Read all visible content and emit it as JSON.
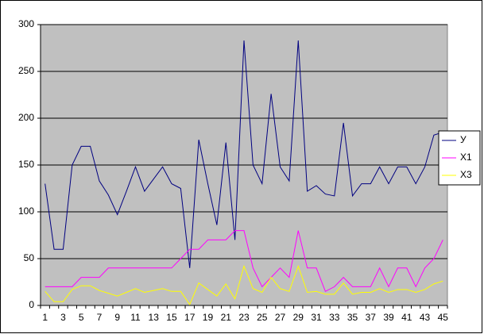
{
  "chart_data": {
    "type": "line",
    "categories": [
      1,
      null,
      3,
      null,
      5,
      null,
      7,
      null,
      9,
      null,
      11,
      null,
      13,
      null,
      15,
      null,
      17,
      null,
      19,
      null,
      21,
      null,
      23,
      null,
      25,
      null,
      27,
      null,
      29,
      null,
      31,
      null,
      33,
      null,
      35,
      null,
      37,
      null,
      39,
      null,
      41,
      null,
      43,
      null,
      45
    ],
    "series": [
      {
        "name": "У",
        "color": "#000080",
        "values": [
          130,
          60,
          60,
          150,
          170,
          170,
          133,
          118,
          97,
          122,
          148,
          122,
          135,
          148,
          130,
          125,
          40,
          177,
          130,
          86,
          174,
          70,
          283,
          150,
          130,
          226,
          148,
          133,
          283,
          122,
          128,
          119,
          117,
          195,
          117,
          130,
          130,
          148,
          130,
          148,
          148,
          130,
          148,
          182,
          185
        ]
      },
      {
        "name": "X1",
        "color": "#ff00ff",
        "values": [
          20,
          20,
          20,
          20,
          30,
          30,
          30,
          40,
          40,
          40,
          40,
          40,
          40,
          40,
          40,
          50,
          60,
          60,
          70,
          70,
          70,
          80,
          80,
          40,
          20,
          30,
          40,
          30,
          80,
          40,
          40,
          15,
          20,
          30,
          20,
          20,
          20,
          40,
          20,
          40,
          40,
          20,
          40,
          50,
          70
        ]
      },
      {
        "name": "X3",
        "color": "#ffff00",
        "values": [
          15,
          4,
          4,
          17,
          21,
          21,
          16,
          13,
          10,
          14,
          18,
          14,
          16,
          18,
          15,
          15,
          1,
          24,
          17,
          10,
          23,
          7,
          42,
          18,
          14,
          30,
          18,
          15,
          42,
          14,
          15,
          12,
          12,
          24,
          12,
          14,
          14,
          18,
          14,
          17,
          17,
          14,
          17,
          23,
          26
        ]
      }
    ],
    "ylim": [
      0,
      300
    ],
    "yticks": [
      0,
      50,
      100,
      150,
      200,
      250,
      300
    ],
    "grid": true,
    "legend": "right"
  }
}
